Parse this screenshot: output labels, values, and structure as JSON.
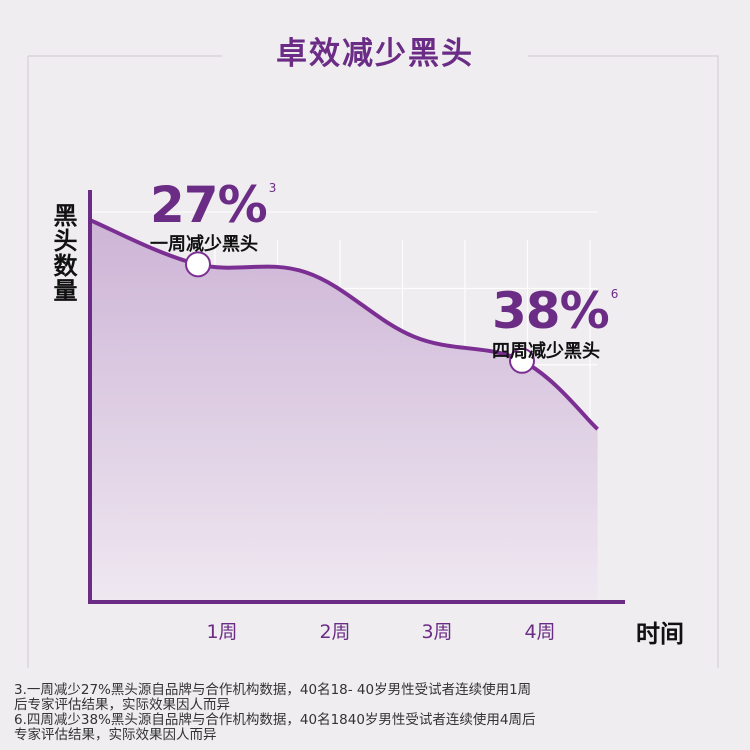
{
  "chart_data": {
    "type": "area",
    "title": "卓效减少黑头",
    "ylabel": "黑头数量",
    "xlabel": "时间",
    "categories": [
      "1周",
      "2周",
      "3周",
      "4周"
    ],
    "x": [
      0,
      1,
      2,
      3,
      4,
      4.7
    ],
    "values": [
      95,
      84,
      82,
      66,
      60,
      43
    ],
    "ylim": [
      0,
      100
    ],
    "markers": [
      {
        "x": 1,
        "value": 84
      },
      {
        "x": 4,
        "value": 60
      }
    ],
    "annotations": [
      {
        "value": "27%",
        "footnote_mark": "3",
        "label": "一周减少黑头"
      },
      {
        "value": "38%",
        "footnote_mark": "6",
        "label": "四周减少黑头"
      }
    ],
    "grid": true,
    "colors": {
      "line": "#7b2f93",
      "axis": "#6b2c86",
      "area_top": "#cdb4d6",
      "area_bottom": "#efe8f1"
    }
  },
  "footnotes": [
    "3.一周减少27%黑头源自品牌与合作机构数据，40名18- 40岁男性受试者连续使用1周",
    "后专家评估结果，实际效果因人而异",
    "6.四周减少38%黑头源自品牌与合作机构数据，40名1840岁男性受试者连续使用4周后",
    "专家评估结果，实际效果因人而异"
  ]
}
